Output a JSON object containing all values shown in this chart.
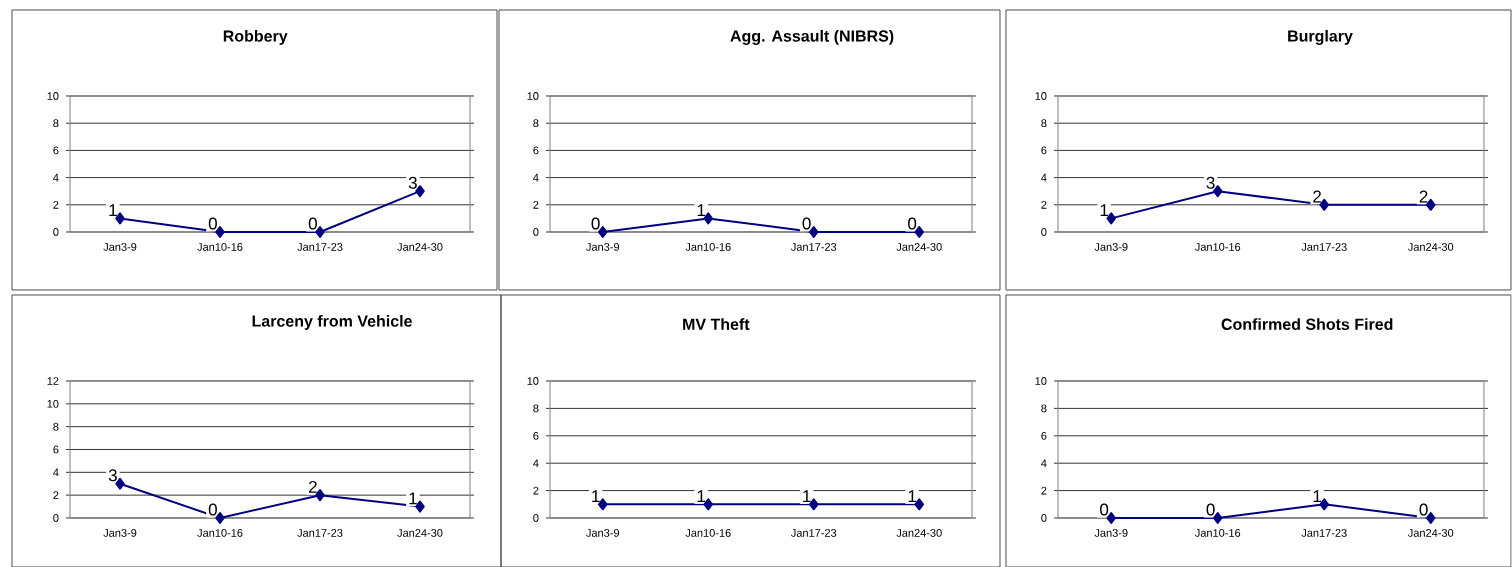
{
  "chart_data": [
    {
      "type": "line",
      "title": "Robbery",
      "categories": [
        "Jan3-9",
        "Jan10-16",
        "Jan17-23",
        "Jan24-30"
      ],
      "values": [
        1,
        0,
        0,
        3
      ],
      "color": "#000080",
      "ylim": [
        0,
        10
      ],
      "yticks": [
        0,
        2,
        4,
        6,
        8,
        10
      ],
      "grid": "y",
      "marker": "diamond",
      "data_labels": true
    },
    {
      "type": "line",
      "title": "Agg. Assault (NIBRS)",
      "categories": [
        "Jan3-9",
        "Jan10-16",
        "Jan17-23",
        "Jan24-30"
      ],
      "values": [
        0,
        1,
        0,
        0
      ],
      "color": "#000080",
      "ylim": [
        0,
        10
      ],
      "yticks": [
        0,
        2,
        4,
        6,
        8,
        10
      ],
      "grid": "y",
      "marker": "diamond",
      "data_labels": true
    },
    {
      "type": "line",
      "title": "Burglary",
      "categories": [
        "Jan3-9",
        "Jan10-16",
        "Jan17-23",
        "Jan24-30"
      ],
      "values": [
        1,
        3,
        2,
        2
      ],
      "color": "#000080",
      "ylim": [
        0,
        10
      ],
      "yticks": [
        0,
        2,
        4,
        6,
        8,
        10
      ],
      "grid": "y",
      "marker": "diamond",
      "data_labels": true
    },
    {
      "type": "line",
      "title": "Larceny from Vehicle",
      "categories": [
        "Jan3-9",
        "Jan10-16",
        "Jan17-23",
        "Jan24-30"
      ],
      "values": [
        3,
        0,
        2,
        1
      ],
      "color": "#000080",
      "ylim": [
        0,
        12
      ],
      "yticks": [
        0,
        2,
        4,
        6,
        8,
        10,
        12
      ],
      "grid": "y",
      "marker": "diamond",
      "data_labels": true
    },
    {
      "type": "line",
      "title": "MV Theft",
      "categories": [
        "Jan3-9",
        "Jan10-16",
        "Jan17-23",
        "Jan24-30"
      ],
      "values": [
        1,
        1,
        1,
        1
      ],
      "color": "#000080",
      "ylim": [
        0,
        10
      ],
      "yticks": [
        0,
        2,
        4,
        6,
        8,
        10
      ],
      "grid": "y",
      "marker": "diamond",
      "data_labels": true
    },
    {
      "type": "line",
      "title": "Confirmed Shots Fired",
      "categories": [
        "Jan3-9",
        "Jan10-16",
        "Jan17-23",
        "Jan24-30"
      ],
      "values": [
        0,
        0,
        1,
        0
      ],
      "color": "#000080",
      "ylim": [
        0,
        10
      ],
      "yticks": [
        0,
        2,
        4,
        6,
        8,
        10
      ],
      "grid": "y",
      "marker": "diamond",
      "data_labels": true
    }
  ]
}
